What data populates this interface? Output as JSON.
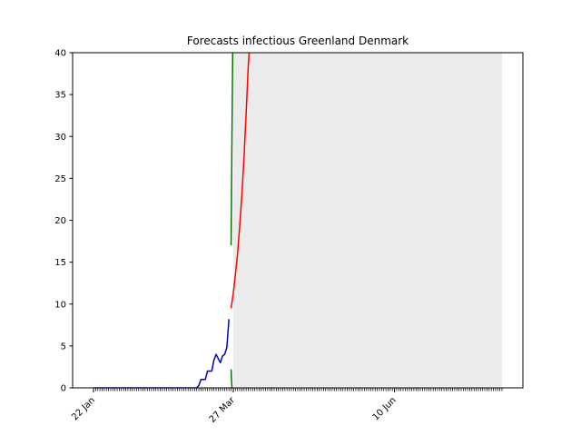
{
  "chart_data": {
    "type": "line",
    "title": "Forecasts infectious Greenland Denmark",
    "xlabel": "",
    "ylabel": "",
    "x_start": "22 Jan",
    "x_end": "30 Jul",
    "ylim": [
      0,
      40
    ],
    "yticks": [
      0,
      5,
      10,
      15,
      20,
      25,
      30,
      35,
      40
    ],
    "xticks": [
      {
        "date": "22 Jan",
        "label": "22 Jan"
      },
      {
        "date": "27 Mar",
        "label": "27 Mar"
      },
      {
        "date": "10 Jun",
        "label": "10 Jun"
      }
    ],
    "forecast_shade": {
      "from": "27 Mar",
      "to": "30 Jul",
      "color": "#ebebeb"
    },
    "grid": false,
    "legend": "none",
    "series": [
      {
        "color": "#0000cc",
        "points": [
          [
            "22 Jan",
            0
          ],
          [
            "10 Mar",
            0
          ],
          [
            "11 Mar",
            0.3
          ],
          [
            "12 Mar",
            1
          ],
          [
            "14 Mar",
            1
          ],
          [
            "15 Mar",
            2
          ],
          [
            "17 Mar",
            2
          ],
          [
            "18 Mar",
            3.3
          ],
          [
            "19 Mar",
            4
          ],
          [
            "20 Mar",
            3.5
          ],
          [
            "21 Mar",
            3.0
          ],
          [
            "22 Mar",
            3.8
          ],
          [
            "23 Mar",
            4
          ],
          [
            "24 Mar",
            4.8
          ],
          [
            "25 Mar",
            8.2
          ]
        ]
      },
      {
        "color": "#ff0000",
        "points": [
          [
            "26 Mar",
            9.5
          ],
          [
            "27 Mar",
            11.3
          ],
          [
            "28 Mar",
            13.5
          ],
          [
            "29 Mar",
            16.0
          ],
          [
            "30 Mar",
            19.3
          ],
          [
            "31 Mar",
            23.0
          ],
          [
            "1 Apr",
            27.5
          ],
          [
            "2 Apr",
            32.8
          ],
          [
            "3 Apr",
            38.5
          ],
          [
            "4 Apr",
            42.0
          ]
        ]
      },
      {
        "color": "#007700",
        "points": [
          [
            "26 Mar",
            17.0
          ],
          [
            "26.4 Mar",
            30.0
          ],
          [
            "26.8 Mar",
            42.0
          ]
        ]
      },
      {
        "color": "#007700",
        "points": [
          [
            "26 Mar",
            2.2
          ],
          [
            "26.2 Mar",
            1.0
          ],
          [
            "26.4 Mar",
            0
          ]
        ]
      }
    ]
  }
}
